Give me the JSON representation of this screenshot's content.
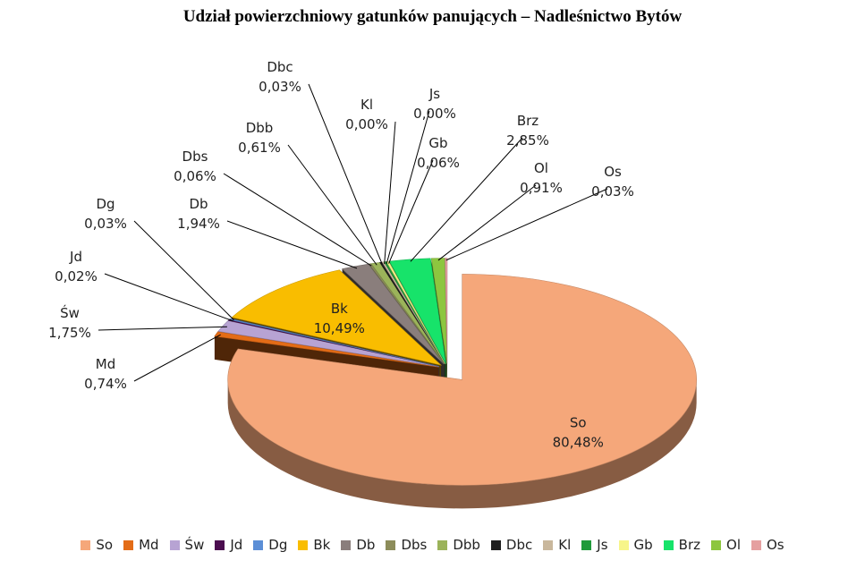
{
  "chart_data": {
    "type": "pie",
    "title": "Udział powierzchniowy gatunków panujących – Nadleśnictwo Bytów",
    "categories": [
      "So",
      "Md",
      "Św",
      "Jd",
      "Dg",
      "Bk",
      "Db",
      "Dbs",
      "Dbb",
      "Dbc",
      "Kl",
      "Js",
      "Gb",
      "Brz",
      "Ol",
      "Os"
    ],
    "values": [
      80.48,
      0.74,
      1.75,
      0.02,
      0.03,
      10.49,
      1.94,
      0.06,
      0.61,
      0.03,
      0.0,
      0.0,
      0.06,
      2.85,
      0.91,
      0.03
    ],
    "value_labels": [
      "80,48%",
      "0,74%",
      "1,75%",
      "0,02%",
      "0,03%",
      "10,49%",
      "1,94%",
      "0,06%",
      "0,61%",
      "0,03%",
      "0,00%",
      "0,00%",
      "0,06%",
      "2,85%",
      "0,91%",
      "0,03%"
    ],
    "colors": [
      "#F5A77A",
      "#E36C17",
      "#B7A3D3",
      "#4B0D4F",
      "#5B8ED6",
      "#F9BD00",
      "#8A7E7C",
      "#8C8C5A",
      "#9BB35A",
      "#1F1F1F",
      "#C9B79C",
      "#1F9A3A",
      "#F7F58A",
      "#17E36A",
      "#8DC63F",
      "#E5A0A0"
    ],
    "legend_position": "bottom",
    "exploded": true,
    "three_d": true
  }
}
